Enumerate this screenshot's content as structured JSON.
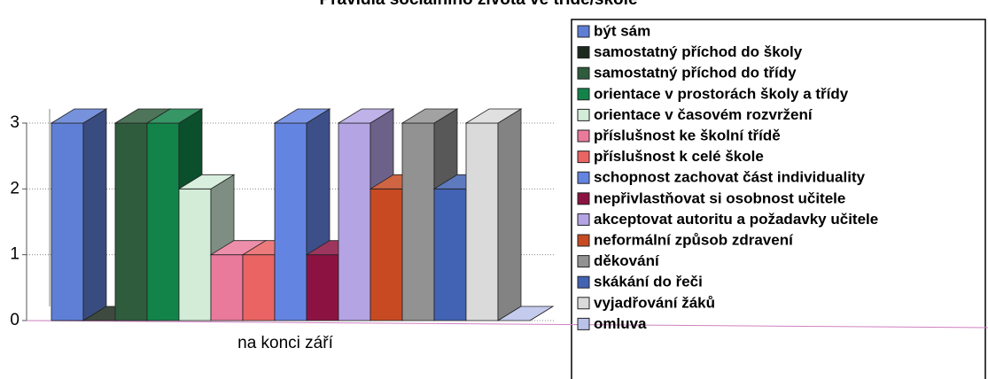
{
  "chart_data": {
    "type": "bar3d",
    "title": "Pravidla sociálního života ve třídě/škole",
    "categories": [
      "na konci září"
    ],
    "series": [
      {
        "name": "být sám",
        "color": "#5f7fd6",
        "values": [
          3
        ]
      },
      {
        "name": "samostatný příchod do školy",
        "color": "#1c2a1e",
        "values": [
          0
        ]
      },
      {
        "name": "samostatný příchod do třídy",
        "color": "#2f5c3c",
        "values": [
          3
        ]
      },
      {
        "name": "orientace v prostorách školy a třídy",
        "color": "#12844a",
        "values": [
          3
        ]
      },
      {
        "name": "orientace v časovém rozvržení",
        "color": "#d2ecd8",
        "values": [
          2
        ]
      },
      {
        "name": "příslušnost ke školní třídě",
        "color": "#ea7a9c",
        "values": [
          1
        ]
      },
      {
        "name": "příslušnost k celé škole",
        "color": "#ea6464",
        "values": [
          1
        ]
      },
      {
        "name": "schopnost zachovat část individuality",
        "color": "#6484e2",
        "values": [
          3
        ]
      },
      {
        "name": "nepřivlastňovat si osobnost učitele",
        "color": "#8c1242",
        "values": [
          1
        ]
      },
      {
        "name": "akceptovat autoritu a požadavky učitele",
        "color": "#b4a4e4",
        "values": [
          3
        ]
      },
      {
        "name": "neformální způsob zdravení",
        "color": "#c84a22",
        "values": [
          2
        ]
      },
      {
        "name": "děkování",
        "color": "#929292",
        "values": [
          3
        ]
      },
      {
        "name": "skákání do řeči",
        "color": "#4262b4",
        "values": [
          2
        ]
      },
      {
        "name": "vyjadřování žáků",
        "color": "#dadada",
        "values": [
          3
        ]
      },
      {
        "name": "omluva",
        "color": "#bac2ea",
        "values": [
          0
        ]
      }
    ],
    "ylim": [
      0,
      3
    ],
    "yticks": [
      0,
      1,
      2,
      3
    ],
    "grid": true
  }
}
